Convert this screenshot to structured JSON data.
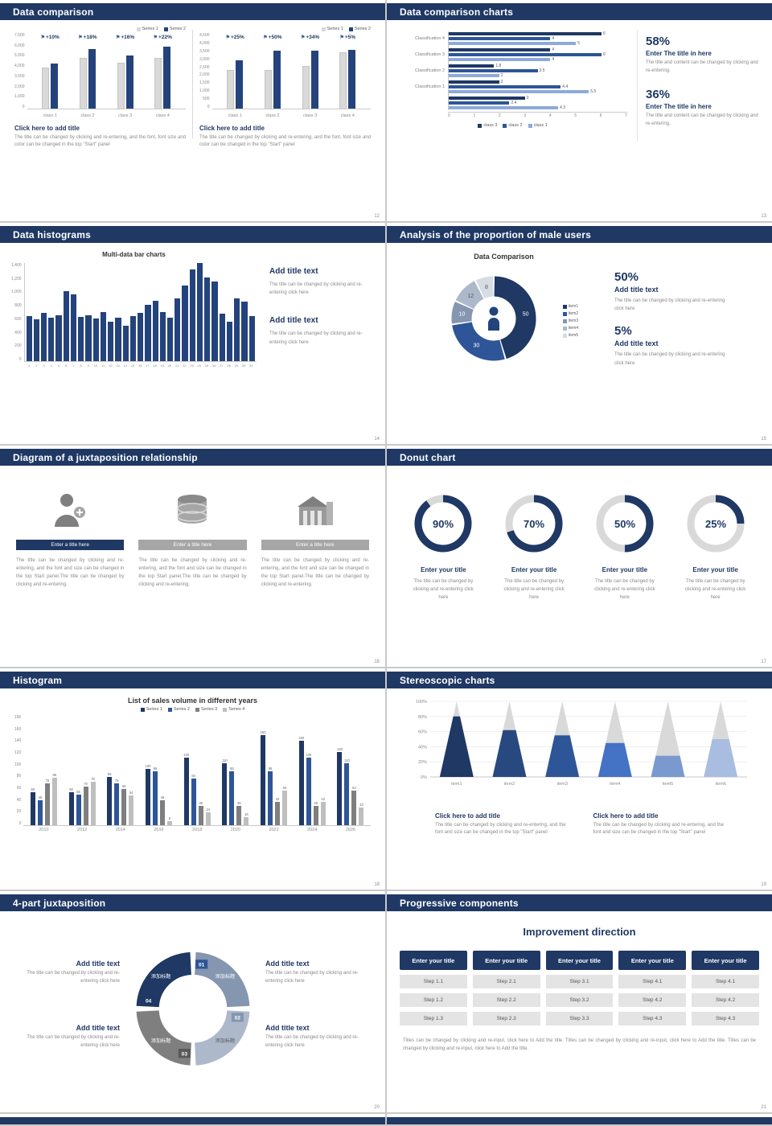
{
  "colors": {
    "navy": "#1f3864",
    "blue": "#2e5597",
    "steel": "#8496b0",
    "lightsteel": "#adb9ca",
    "gray": "#7f7f7f",
    "lightgray": "#d9d9d9"
  },
  "slides": {
    "s12": {
      "title": "Data comparison",
      "page": "12",
      "panels": [
        {
          "heading": "Click here to add title",
          "body": "The title can be changed by clicking and re-entering, and the font, font size and color can be changed in the top \"Start\" panel",
          "chart_data": {
            "type": "bar",
            "categories": [
              "class 1",
              "class 2",
              "class 3",
              "class 4"
            ],
            "group_labels": [
              "+10%",
              "+18%",
              "+16%",
              "+22%"
            ],
            "series": [
              {
                "name": "Series 1",
                "color": "#d9d9d9",
                "values": [
                  4300,
                  5300,
                  4800,
                  5300
                ]
              },
              {
                "name": "Series 2",
                "color": "#24437c",
                "values": [
                  4730,
                  6250,
                  5570,
                  6470
                ]
              }
            ],
            "yticks": [
              "7,000",
              "6,000",
              "5,000",
              "4,000",
              "3,000",
              "2,000",
              "1,000",
              "0"
            ],
            "ymax": 7000
          }
        },
        {
          "heading": "Click here to add title",
          "body": "The title can be changed by clicking and re-entering, and the font, font size and color can be changed in the top \"Start\" panel",
          "chart_data": {
            "type": "bar",
            "categories": [
              "class 1",
              "class 2",
              "class 3",
              "class 4"
            ],
            "group_labels": [
              "+25%",
              "+50%",
              "+34%",
              "+5%"
            ],
            "series": [
              {
                "name": "Series 1",
                "color": "#d9d9d9",
                "values": [
                  2600,
                  2600,
                  2900,
                  3800
                ]
              },
              {
                "name": "Series 2",
                "color": "#24437c",
                "values": [
                  3250,
                  3900,
                  3890,
                  3990
                ]
              }
            ],
            "yticks": [
              "4,500",
              "4,000",
              "3,500",
              "3,000",
              "2,500",
              "2,000",
              "1,500",
              "1,000",
              "500",
              "0"
            ],
            "ymax": 4500
          }
        }
      ]
    },
    "s13": {
      "title": "Data comparison charts",
      "page": "13",
      "chart_data": {
        "type": "bar-horizontal",
        "xmax": 7,
        "xticks": [
          "0",
          "1",
          "2",
          "3",
          "4",
          "5",
          "6",
          "7"
        ],
        "bar_colors": [
          "#1f3864",
          "#2e5597",
          "#8eaadb"
        ],
        "groups": [
          {
            "label": "Classification 4",
            "values": [
              6,
              4,
              5
            ]
          },
          {
            "label": "Classification 3",
            "values": [
              4,
              6,
              4
            ]
          },
          {
            "label": "Classification 2",
            "values": [
              1.8,
              3.5,
              2
            ]
          },
          {
            "label": "Classification 1",
            "values": [
              2,
              4.4,
              5.5
            ]
          },
          {
            "label": "",
            "values": [
              3,
              2.4,
              4.3
            ]
          }
        ],
        "legend": [
          {
            "label": "class 3",
            "color": "#1f3864"
          },
          {
            "label": "class 2",
            "color": "#2e5597"
          },
          {
            "label": "class 1",
            "color": "#8eaadb"
          }
        ]
      },
      "stats": [
        {
          "value": "58%",
          "heading": "Enter The title in here",
          "body": "The title and content can be changed by clicking and re-entering."
        },
        {
          "value": "36%",
          "heading": "Enter The title in here",
          "body": "The title and content can be changed by clicking and re-entering."
        }
      ]
    },
    "s14": {
      "title": "Data histograms",
      "page": "14",
      "chart_title": "Multi-data bar charts",
      "chart_data": {
        "type": "bar",
        "bar_color": "#24437c",
        "ymax": 1400,
        "yticks": [
          "1,400",
          "1,200",
          "1,000",
          "800",
          "600",
          "400",
          "200",
          "0"
        ],
        "x": [
          1,
          2,
          3,
          4,
          5,
          6,
          7,
          8,
          9,
          10,
          11,
          12,
          13,
          14,
          15,
          16,
          17,
          18,
          19,
          20,
          21,
          22,
          23,
          24,
          25,
          26,
          27,
          28,
          29,
          30,
          31
        ],
        "values": [
          640,
          600,
          690,
          620,
          660,
          1000,
          950,
          630,
          660,
          610,
          700,
          560,
          620,
          500,
          640,
          690,
          800,
          860,
          700,
          620,
          900,
          1080,
          1310,
          1400,
          1190,
          1140,
          680,
          560,
          890,
          850,
          640
        ]
      },
      "blocks": [
        {
          "heading": "Add title text",
          "body": "The title can be changed by clicking and re-entering click here"
        },
        {
          "heading": "Add title text",
          "body": "The title can be changed by clicking and re-entering click here"
        }
      ]
    },
    "s15": {
      "title": "Analysis of the proportion of male users",
      "page": "15",
      "chart_title": "Data Comparison",
      "chart_data": {
        "type": "pie",
        "items": [
          {
            "label": "item1",
            "value": 50,
            "color": "#1f3864"
          },
          {
            "label": "item2",
            "value": 30,
            "color": "#2e5597"
          },
          {
            "label": "item3",
            "value": 10,
            "color": "#8496b0"
          },
          {
            "label": "item4",
            "value": 12,
            "color": "#adb9ca"
          },
          {
            "label": "item5",
            "value": 8,
            "color": "#d6dce4"
          }
        ]
      },
      "stats": [
        {
          "value": "50%",
          "heading": "Add title text",
          "body": "The title can be changed by clicking and re-entering click here"
        },
        {
          "value": "5%",
          "heading": "Add title text",
          "body": "The title can be changed by clicking and re-entering click here"
        }
      ]
    },
    "s16": {
      "title": "Diagram of a juxtaposition relationship",
      "page": "16",
      "columns": [
        {
          "bar": "Enter a title here",
          "bar_color": "#1f3864",
          "body": "The title can be changed by clicking and re-entering, and the font and size can be changed in the top Start panel.The title can be changed by clicking and re-entering."
        },
        {
          "bar": "Enter a title here",
          "bar_color": "#a6a6a6",
          "body": "The title can be changed by clicking and re-entering, and the font and size can be changed in the top Start panel.The title can be changed by clicking and re-entering."
        },
        {
          "bar": "Enter a title here",
          "bar_color": "#a6a6a6",
          "body": "The title can be changed by clicking and re-entering, and the font and size can be changed in the top Start panel.The title can be changed by clicking and re-entering."
        }
      ]
    },
    "s17": {
      "title": "Donut chart",
      "page": "17",
      "gauges": [
        {
          "percent": 90,
          "display": "90%",
          "ring": "#1f3864",
          "track": "#d9d9d9",
          "heading": "Enter your title",
          "body": "The title can be changed by clicking and re-entering click here"
        },
        {
          "percent": 70,
          "display": "70%",
          "ring": "#1f3864",
          "track": "#d9d9d9",
          "heading": "Enter your title",
          "body": "The title can be changed by clicking and re-entering click here"
        },
        {
          "percent": 50,
          "display": "50%",
          "ring": "#1f3864",
          "track": "#d9d9d9",
          "heading": "Enter your title",
          "body": "The title can be changed by clicking and re-entering click here"
        },
        {
          "percent": 25,
          "display": "25%",
          "ring": "#1f3864",
          "track": "#d9d9d9",
          "heading": "Enter your title",
          "body": "The title can be changed by clicking and re-entering click here"
        }
      ]
    },
    "s18": {
      "title": "Histogram",
      "page": "18",
      "chart_title": "List of sales volume in different years",
      "chart_data": {
        "type": "bar",
        "ymax": 180,
        "yticks": [
          "180",
          "160",
          "140",
          "120",
          "100",
          "80",
          "60",
          "40",
          "20",
          "0"
        ],
        "categories": [
          "2010",
          "2012",
          "2014",
          "2016",
          "2018",
          "2020",
          "2022",
          "2024",
          "2026"
        ],
        "series": [
          {
            "name": "Series 1",
            "color": "#1f3864",
            "values": [
              60,
              60,
              86,
              100,
              120,
              110,
              160,
              150,
              130
            ]
          },
          {
            "name": "Series 2",
            "color": "#2e5597",
            "values": [
              45,
              55,
              75,
              96,
              84,
              96,
              96,
              120,
              110
            ]
          },
          {
            "name": "Series 3",
            "color": "#7f7f7f",
            "values": [
              75,
              70,
              65,
              46,
              36,
              36,
              42,
              35,
              62
            ]
          },
          {
            "name": "Series 4",
            "color": "#bfbfbf",
            "values": [
              85,
              78,
              54,
              9,
              24,
              16,
              63,
              42,
              32
            ]
          }
        ]
      }
    },
    "s19": {
      "title": "Stereoscopic charts",
      "page": "19",
      "chart_data": {
        "type": "pyramid",
        "categories": [
          "item1",
          "item2",
          "item3",
          "item4",
          "item5",
          "item6"
        ],
        "fill_percent": [
          80,
          62,
          55,
          45,
          28,
          50
        ],
        "colors": [
          "#1f3864",
          "#27497f",
          "#2e5597",
          "#4472c4",
          "#7a99cf",
          "#a8bde0"
        ],
        "top_color": "#d9d9d9",
        "yticks": [
          "100%",
          "80%",
          "60%",
          "40%",
          "20%",
          "0%"
        ]
      },
      "blocks": [
        {
          "heading": "Click here to add title",
          "body": "The title can be changed by clicking and re-entering, and the font and size can be changed in the top \"Start\" panel"
        },
        {
          "heading": "Click here to add title",
          "body": "The title can be changed by clicking and re-entering, and the font and size can be changed in the top \"Start\" panel"
        }
      ]
    },
    "s20": {
      "title": "4-part juxtaposition",
      "page": "20",
      "ring": {
        "segments": [
          {
            "num": "01",
            "text": "添加标题",
            "color": "#8496b0",
            "tab_color": "#2e5597"
          },
          {
            "num": "02",
            "text": "添加标题",
            "color": "#adb9ca",
            "tab_color": "#8496b0"
          },
          {
            "num": "03",
            "text": "添加标题",
            "color": "#7f7f7f",
            "tab_color": "#595959"
          },
          {
            "num": "04",
            "text": "添加标题",
            "color": "#1f3864",
            "tab_color": "#1f3864"
          }
        ]
      },
      "blocks": [
        {
          "heading": "Add title text",
          "body": "The title can be changed by clicking and re-entering click here"
        },
        {
          "heading": "Add title text",
          "body": "The title can be changed by clicking and re-entering click here"
        },
        {
          "heading": "Add title text",
          "body": "The title can be changed by clicking and re-entering click here"
        },
        {
          "heading": "Add title text",
          "body": "The title can be changed by clicking and re-entering click here"
        }
      ]
    },
    "s21": {
      "title": "Progressive components",
      "page": "21",
      "heading": "Improvement direction",
      "columns": [
        {
          "button": "Enter your title",
          "steps": [
            "Step 1.1",
            "Step 1.2",
            "Step 1.3"
          ]
        },
        {
          "button": "Enter your title",
          "steps": [
            "Step 2.1",
            "Step 2.2",
            "Step 2.3"
          ]
        },
        {
          "button": "Enter your title",
          "steps": [
            "Step 3.1",
            "Step 3.2",
            "Step 3.3"
          ]
        },
        {
          "button": "Enter your title",
          "steps": [
            "Step 4.1",
            "Step 4.2",
            "Step 4.3"
          ]
        },
        {
          "button": "Enter your title",
          "steps": [
            "Step 4.1",
            "Step 4.2",
            "Step 4.3"
          ]
        }
      ],
      "footer": "Titles can be changed by clicking and re-input, click here to Add the title. Titles can be changed by clicking and re-input, click here to Add the title. Titles can be changed by clicking and re-input, click here to Add the title."
    }
  }
}
